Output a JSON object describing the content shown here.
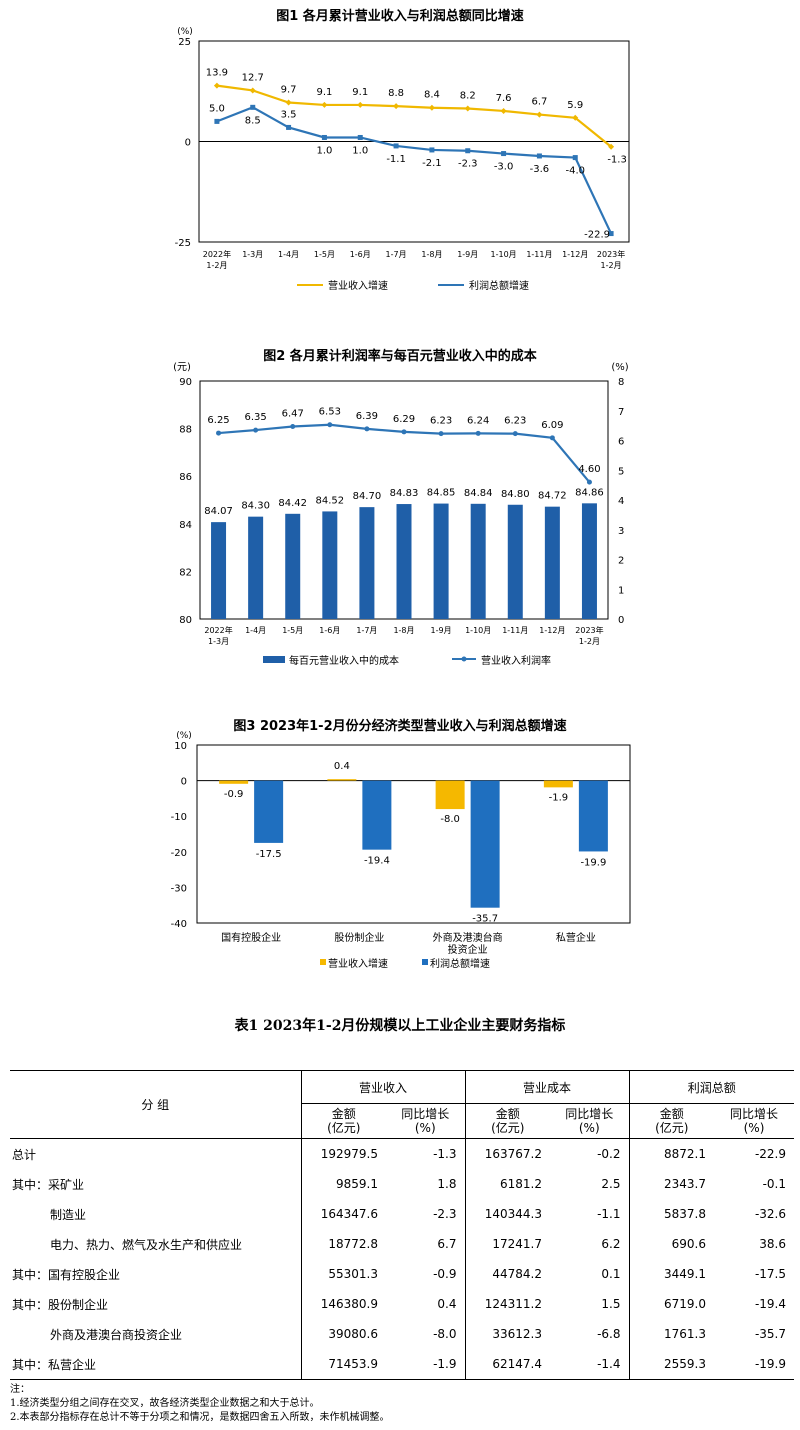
{
  "charts": [
    {
      "title": "图1  各月累计营业收入与利润总额同比增速",
      "unit_label": "(%)",
      "y_ticks": [
        "25",
        "0",
        "-25"
      ],
      "categories": [
        [
          "2022年",
          "1-2月"
        ],
        [
          "1-3月"
        ],
        [
          "1-4月"
        ],
        [
          "1-5月"
        ],
        [
          "1-6月"
        ],
        [
          "1-7月"
        ],
        [
          "1-8月"
        ],
        [
          "1-9月"
        ],
        [
          "1-10月"
        ],
        [
          "1-11月"
        ],
        [
          "1-12月"
        ],
        [
          "2023年",
          "1-2月"
        ]
      ],
      "legend": [
        "营业收入增速",
        "利润总额增速"
      ]
    },
    {
      "title": "图2  各月累计利润率与每百元营业收入中的成本",
      "unit_left": "(元)",
      "unit_right": "(%)",
      "y_left_ticks": [
        "90",
        "88",
        "86",
        "84",
        "82",
        "80"
      ],
      "y_right_ticks": [
        "8",
        "7",
        "6",
        "5",
        "4",
        "3",
        "2",
        "1",
        "0"
      ],
      "categories": [
        [
          "2022年",
          "1-3月"
        ],
        [
          "1-4月"
        ],
        [
          "1-5月"
        ],
        [
          "1-6月"
        ],
        [
          "1-7月"
        ],
        [
          "1-8月"
        ],
        [
          "1-9月"
        ],
        [
          "1-10月"
        ],
        [
          "1-11月"
        ],
        [
          "1-12月"
        ],
        [
          "2023年",
          "1-2月"
        ]
      ],
      "legend": [
        "每百元营业收入中的成本",
        "营业收入利润率"
      ]
    },
    {
      "title": "图3  2023年1-2月份分经济类型营业收入与利润总额增速",
      "unit_label": "(%)",
      "y_ticks": [
        "10",
        "0",
        "-10",
        "-20",
        "-30",
        "-40"
      ],
      "categories": [
        [
          "国有控股企业"
        ],
        [
          "股份制企业"
        ],
        [
          "外商及港澳台商",
          "投资企业"
        ],
        [
          "私营企业"
        ]
      ],
      "legend": [
        "营业收入增速",
        "利润总额增速"
      ]
    }
  ],
  "chart_data": [
    {
      "type": "line",
      "x": [
        "2022年1-2月",
        "1-3月",
        "1-4月",
        "1-5月",
        "1-6月",
        "1-7月",
        "1-8月",
        "1-9月",
        "1-10月",
        "1-11月",
        "1-12月",
        "2023年1-2月"
      ],
      "ylim": [
        -25,
        25
      ],
      "series": [
        {
          "name": "营业收入增速",
          "color": "#f0b800",
          "values": [
            13.9,
            12.7,
            9.7,
            9.1,
            9.1,
            8.8,
            8.4,
            8.2,
            7.6,
            6.7,
            5.9,
            -1.3
          ]
        },
        {
          "name": "利润总额增速",
          "color": "#2e75b6",
          "values": [
            5.0,
            8.5,
            3.5,
            1.0,
            1.0,
            -1.1,
            -2.1,
            -2.3,
            -3.0,
            -3.6,
            -4.0,
            -22.9
          ]
        }
      ]
    },
    {
      "type": "bar+line",
      "x": [
        "2022年1-3月",
        "1-4月",
        "1-5月",
        "1-6月",
        "1-7月",
        "1-8月",
        "1-9月",
        "1-10月",
        "1-11月",
        "1-12月",
        "2023年1-2月"
      ],
      "ylim_left": [
        80,
        90
      ],
      "ylim_right": [
        0,
        8
      ],
      "series": [
        {
          "name": "每百元营业收入中的成本",
          "axis": "left",
          "type": "bar",
          "color": "#1f5fa8",
          "values": [
            84.07,
            84.3,
            84.42,
            84.52,
            84.7,
            84.83,
            84.85,
            84.84,
            84.8,
            84.72,
            84.86
          ],
          "labels": [
            "84.07",
            "84.30",
            "84.42",
            "84.52",
            "84.70",
            "84.83",
            "84.85",
            "84.84",
            "84.80",
            "84.72",
            "84.86"
          ]
        },
        {
          "name": "营业收入利润率",
          "axis": "right",
          "type": "line",
          "color": "#2e75b6",
          "values": [
            6.25,
            6.35,
            6.47,
            6.53,
            6.39,
            6.29,
            6.23,
            6.24,
            6.23,
            6.09,
            4.6
          ],
          "labels": [
            "6.25",
            "6.35",
            "6.47",
            "6.53",
            "6.39",
            "6.29",
            "6.23",
            "6.24",
            "6.23",
            "6.09",
            "4.60"
          ]
        }
      ]
    },
    {
      "type": "bar",
      "categories": [
        "国有控股企业",
        "股份制企业",
        "外商及港澳台商投资企业",
        "私营企业"
      ],
      "ylim": [
        -40,
        10
      ],
      "series": [
        {
          "name": "营业收入增速",
          "color": "#f5b800",
          "values": [
            -0.9,
            0.4,
            -8.0,
            -1.9
          ]
        },
        {
          "name": "利润总额增速",
          "color": "#1f6fbf",
          "values": [
            -17.5,
            -19.4,
            -35.7,
            -19.9
          ]
        }
      ]
    }
  ],
  "table": {
    "title": "表1    2023年1-2月份规模以上工业企业主要财务指标",
    "group_header": "分    组",
    "col_groups": [
      "营业收入",
      "营业成本",
      "利润总额"
    ],
    "sub_amount": [
      "金额",
      "(亿元)"
    ],
    "sub_growth": [
      "同比增长",
      "(%)"
    ],
    "rows": [
      {
        "label": "总计",
        "indent": false,
        "values": [
          "192979.5",
          "-1.3",
          "163767.2",
          "-0.2",
          "8872.1",
          "-22.9"
        ]
      },
      {
        "label": "其中：采矿业",
        "indent": false,
        "values": [
          "9859.1",
          "1.8",
          "6181.2",
          "2.5",
          "2343.7",
          "-0.1"
        ]
      },
      {
        "label": "制造业",
        "indent": true,
        "values": [
          "164347.6",
          "-2.3",
          "140344.3",
          "-1.1",
          "5837.8",
          "-32.6"
        ]
      },
      {
        "label": "电力、热力、燃气及水生产和供应业",
        "indent": true,
        "values": [
          "18772.8",
          "6.7",
          "17241.7",
          "6.2",
          "690.6",
          "38.6"
        ]
      },
      {
        "label": "其中：国有控股企业",
        "indent": false,
        "values": [
          "55301.3",
          "-0.9",
          "44784.2",
          "0.1",
          "3449.1",
          "-17.5"
        ]
      },
      {
        "label": "其中：股份制企业",
        "indent": false,
        "values": [
          "146380.9",
          "0.4",
          "124311.2",
          "1.5",
          "6719.0",
          "-19.4"
        ]
      },
      {
        "label": "外商及港澳台商投资企业",
        "indent": true,
        "values": [
          "39080.6",
          "-8.0",
          "33612.3",
          "-6.8",
          "1761.3",
          "-35.7"
        ]
      },
      {
        "label": "其中：私营企业",
        "indent": false,
        "values": [
          "71453.9",
          "-1.9",
          "62147.4",
          "-1.4",
          "2559.3",
          "-19.9"
        ]
      }
    ]
  },
  "notes": [
    "注：",
    "1.经济类型分组之间存在交叉，故各经济类型企业数据之和大于总计。",
    "2.本表部分指标存在总计不等于分项之和情况，是数据四舍五入所致，未作机械调整。"
  ]
}
